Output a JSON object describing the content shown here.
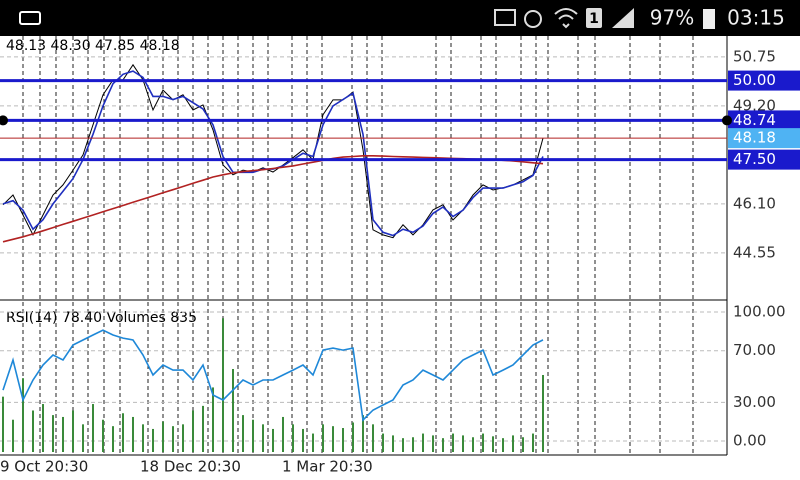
{
  "status_bar": {
    "sim": "1",
    "battery": "97%",
    "time": "03:15"
  },
  "chart_data": [
    {
      "type": "line",
      "title": "48.13 48.30 47.85 48.18",
      "xlim": [
        -0.3,
        72.4
      ],
      "ylim": [
        43.06,
        51.41
      ],
      "yticks": [
        44.55,
        {
          "value": 46.1,
          "label": "46.10"
        },
        {
          "value": 49.2,
          "label": "49.20"
        },
        50.75
      ],
      "levels": [
        {
          "value": 50,
          "label": "50.00",
          "color": "#1a1acc"
        },
        {
          "value": 48.74,
          "label": "48.74",
          "color": "#1a1acc"
        },
        {
          "value": 48.18,
          "label": "48.18",
          "color": "#b22222"
        },
        {
          "value": 47.5,
          "label": "47.50",
          "color": "#1a1acc"
        }
      ],
      "series": [
        {
          "color": "#000000",
          "values": [
            46.07,
            46.38,
            45.75,
            45.12,
            45.75,
            46.38,
            46.7,
            47.17,
            47.65,
            48.6,
            49.55,
            50.02,
            50.02,
            50.5,
            50.02,
            49.07,
            49.7,
            49.39,
            49.55,
            49.07,
            49.23,
            48.44,
            47.33,
            47.02,
            47.17,
            47.11,
            47.24,
            47.11,
            47.33,
            47.56,
            47.81,
            47.49,
            48.92,
            49.39,
            49.39,
            49.64,
            47.81,
            45.28,
            45.12,
            45.03,
            45.44,
            45.12,
            45.44,
            45.91,
            46.07,
            45.59,
            45.91,
            46.38,
            46.7,
            46.54,
            46.61,
            46.7,
            46.86,
            47.02,
            48.18
          ]
        },
        {
          "color": "#1f2fbf",
          "values": [
            46.1,
            46.2,
            45.9,
            45.3,
            45.6,
            46.1,
            46.5,
            46.9,
            47.5,
            48.3,
            49.2,
            49.9,
            50.2,
            50.3,
            50.1,
            49.5,
            49.5,
            49.4,
            49.5,
            49.3,
            49.1,
            48.6,
            47.6,
            47.1,
            47.1,
            47.1,
            47.2,
            47.2,
            47.3,
            47.5,
            47.7,
            47.6,
            48.6,
            49.2,
            49.4,
            49.6,
            48.3,
            45.6,
            45.2,
            45.1,
            45.3,
            45.2,
            45.4,
            45.8,
            46.0,
            45.7,
            45.9,
            46.3,
            46.6,
            46.6,
            46.6,
            46.7,
            46.8,
            47.0,
            47.6
          ]
        },
        {
          "color": "#b22222",
          "values": [
            44.9,
            44.98,
            45.06,
            45.15,
            45.25,
            45.35,
            45.45,
            45.55,
            45.65,
            45.75,
            45.85,
            45.95,
            46.05,
            46.15,
            46.25,
            46.35,
            46.45,
            46.55,
            46.65,
            46.75,
            46.85,
            46.95,
            47.02,
            47.08,
            47.12,
            47.15,
            47.18,
            47.22,
            47.26,
            47.3,
            47.36,
            47.42,
            47.48,
            47.54,
            47.58,
            47.6,
            47.62,
            47.62,
            47.61,
            47.6,
            47.59,
            47.58,
            47.57,
            47.56,
            47.55,
            47.54,
            47.53,
            47.52,
            47.51,
            47.5,
            47.48,
            47.46,
            47.43,
            47.4,
            47.37
          ]
        }
      ]
    },
    {
      "type": "line",
      "title": "RSI(14) 78.40 Volumes 835",
      "xlim": [
        -0.3,
        72.4
      ],
      "xticks": [
        {
          "value": 0,
          "label": "9 Oct 20:30"
        },
        {
          "value": 14.5,
          "label": "18 Dec 20:30"
        },
        {
          "value": 28.7,
          "label": "1 Mar 20:30"
        }
      ],
      "ylim": [
        -8.5,
        109.3
      ],
      "yticks": [
        {
          "value": 100,
          "label": "100.00"
        },
        {
          "value": 70,
          "label": "70.00"
        },
        {
          "value": 30,
          "label": "30.00"
        },
        {
          "value": 0,
          "label": "0.00"
        }
      ],
      "y2lim": [
        0,
        1648
      ],
      "series": [
        {
          "type": "bar",
          "axis": "y2",
          "color": "#3a8a3a",
          "values": [
            600,
            350,
            800,
            450,
            520,
            400,
            380,
            450,
            300,
            520,
            350,
            280,
            420,
            380,
            300,
            250,
            330,
            280,
            300,
            450,
            500,
            700,
            1450,
            900,
            400,
            350,
            300,
            250,
            380,
            300,
            250,
            200,
            300,
            280,
            260,
            320,
            400,
            300,
            200,
            180,
            150,
            160,
            200,
            180,
            150,
            200,
            180,
            160,
            200,
            170,
            150,
            180,
            160,
            200,
            835
          ]
        },
        {
          "color": "#1e88d8",
          "values": [
            39.5,
            62.8,
            31.8,
            47.3,
            58.9,
            66.7,
            62.8,
            74.4,
            78.3,
            82.2,
            86,
            82.2,
            79.8,
            78.3,
            66.7,
            51.2,
            58.9,
            55,
            55,
            47.3,
            58.9,
            35.7,
            31.8,
            39.5,
            47.3,
            43.4,
            47.3,
            47.3,
            51.2,
            55,
            58.9,
            51.2,
            70.5,
            72,
            70.5,
            72,
            16.3,
            24,
            27.9,
            31.8,
            43.4,
            47.3,
            55,
            51.2,
            47.3,
            55,
            62.8,
            66.7,
            70.5,
            51.2,
            55,
            58.9,
            66.7,
            74.4,
            78.4
          ]
        }
      ]
    }
  ]
}
